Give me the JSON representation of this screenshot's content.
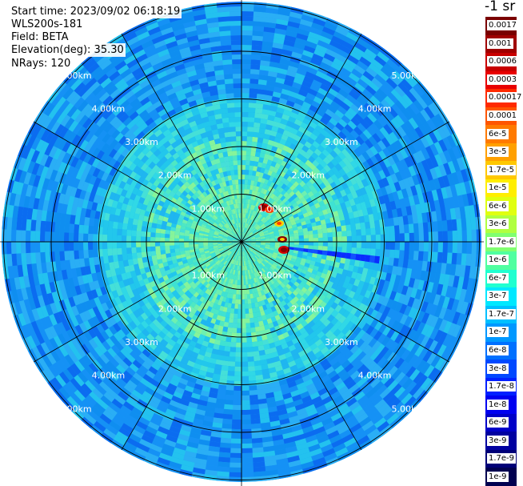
{
  "header": {
    "start_time": "Start time: 2023/09/02 06:18:19",
    "instrument": "WLS200s-181",
    "field": "Field: BETA",
    "elevation": "Elevation(deg): 35.30",
    "nrays": "NRays: 120"
  },
  "range_ring_labels": [
    "1.00km",
    "2.00km",
    "3.00km",
    "4.00km",
    "5.00km"
  ],
  "colorbar": {
    "title": "-1 sr",
    "levels": [
      {
        "label": "0.0017",
        "color": "#7a0000"
      },
      {
        "label": "0.001",
        "color": "#a00000"
      },
      {
        "label": "0.0006",
        "color": "#c80000"
      },
      {
        "label": "0.0003",
        "color": "#e80000"
      },
      {
        "label": "0.00017",
        "color": "#ff2a00"
      },
      {
        "label": "0.0001",
        "color": "#ff5500"
      },
      {
        "label": "6e-5",
        "color": "#ff7a00"
      },
      {
        "label": "3e-5",
        "color": "#ffa000"
      },
      {
        "label": "1.7e-5",
        "color": "#ffc800"
      },
      {
        "label": "1e-5",
        "color": "#ffee00"
      },
      {
        "label": "6e-6",
        "color": "#e0ff10"
      },
      {
        "label": "3e-6",
        "color": "#b0ff40"
      },
      {
        "label": "1.7e-6",
        "color": "#80ff70"
      },
      {
        "label": "1e-6",
        "color": "#50ffa0"
      },
      {
        "label": "6e-7",
        "color": "#20ffd0"
      },
      {
        "label": "3e-7",
        "color": "#00e8ff"
      },
      {
        "label": "1.7e-7",
        "color": "#00c0ff"
      },
      {
        "label": "1e-7",
        "color": "#0098ff"
      },
      {
        "label": "6e-8",
        "color": "#0070ff"
      },
      {
        "label": "3e-8",
        "color": "#0048ff"
      },
      {
        "label": "1.7e-8",
        "color": "#0020ff"
      },
      {
        "label": "1e-8",
        "color": "#0000f0"
      },
      {
        "label": "6e-9",
        "color": "#0000c8"
      },
      {
        "label": "3e-9",
        "color": "#0000a0"
      },
      {
        "label": "1.7e-9",
        "color": "#000078"
      },
      {
        "label": "1e-9",
        "color": "#000050"
      }
    ]
  },
  "palette": {
    "far": [
      "#0b6cf0",
      "#1591f5",
      "#2aaef5",
      "#23c2ef",
      "#0f8ef0"
    ],
    "mid": [
      "#22c7ec",
      "#30d8e6",
      "#1fb6f0",
      "#45e0d8"
    ],
    "near": [
      "#4ee8c4",
      "#6ef0b0",
      "#3fe2d2",
      "#86f49a"
    ],
    "hot": [
      "#d40000",
      "#ff3a00",
      "#ffd000",
      "#8a0000"
    ]
  }
}
